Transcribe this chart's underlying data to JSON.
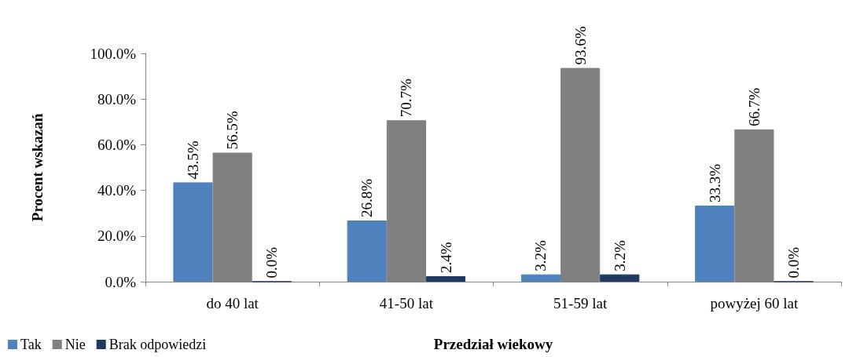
{
  "chart_data": {
    "type": "bar",
    "xlabel": "Przedział wiekowy",
    "ylabel": "Procent wskazań",
    "categories": [
      "do 40 lat",
      "41-50 lat",
      "51-59 lat",
      "powyżej 60 lat"
    ],
    "series": [
      {
        "name": "Tak",
        "color": "#4f81bd",
        "values": [
          43.5,
          26.8,
          3.2,
          33.3
        ],
        "value_labels": [
          "43.5%",
          "26.8%",
          "3.2%",
          "33.3%"
        ]
      },
      {
        "name": "Nie",
        "color": "#808080",
        "values": [
          56.5,
          70.7,
          93.6,
          66.7
        ],
        "value_labels": [
          "56.5%",
          "70.7%",
          "93.6%",
          "66.7%"
        ]
      },
      {
        "name": "Brak odpowiedzi",
        "color": "#1f3864",
        "values": [
          0.0,
          2.4,
          3.2,
          0.0
        ],
        "value_labels": [
          "0.0%",
          "2.4%",
          "3.2%",
          "0.0%"
        ]
      }
    ],
    "ylim": [
      0,
      100
    ],
    "yticks": [
      {
        "value": 0,
        "label": "0.0%"
      },
      {
        "value": 20,
        "label": "20.0%"
      },
      {
        "value": 40,
        "label": "40.0%"
      },
      {
        "value": 60,
        "label": "60.0%"
      },
      {
        "value": 80,
        "label": "80.0%"
      },
      {
        "value": 100,
        "label": "100.0%"
      }
    ],
    "grid": false,
    "legend": "bottom left"
  }
}
